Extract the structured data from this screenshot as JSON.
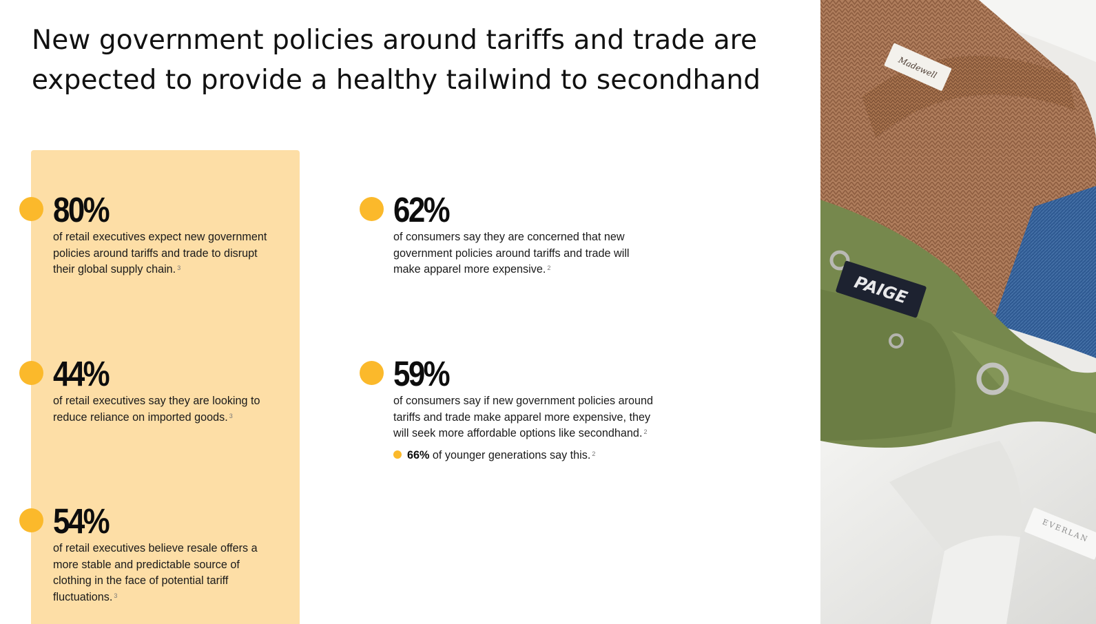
{
  "title": "New government policies around tariffs and trade are expected to provide a healthy tailwind to secondhand",
  "stats": {
    "exec_80": {
      "value": "80%",
      "text": "of retail executives expect new government policies around tariffs and trade to disrupt their global supply chain.",
      "footnote": "3"
    },
    "exec_44": {
      "value": "44%",
      "text": "of retail executives say they are looking to reduce reliance on imported goods.",
      "footnote": "3"
    },
    "exec_54": {
      "value": "54%",
      "text": "of retail executives believe resale offers a more stable and predictable source of clothing in the face of potential tariff fluctuations.",
      "footnote": "3"
    },
    "cons_62": {
      "value": "62%",
      "text": "of consumers say they are concerned that new government policies around tariffs and trade will make apparel more expensive.",
      "footnote": "2"
    },
    "cons_59": {
      "value": "59%",
      "text": "of consumers say if new government policies around tariffs and trade make apparel more expensive, they will seek more affordable options like secondhand.",
      "footnote": "2"
    }
  },
  "sub_note": {
    "value": "66%",
    "text": " of younger generations say this.",
    "footnote": "2"
  },
  "photo": {
    "labels": {
      "madewell": "Madewell",
      "paige": "PAIGE",
      "everlane": "EVERLAN"
    }
  },
  "colors": {
    "accent_dot": "#fbb92b",
    "panel_bg": "#fddea6",
    "text": "#111111"
  }
}
